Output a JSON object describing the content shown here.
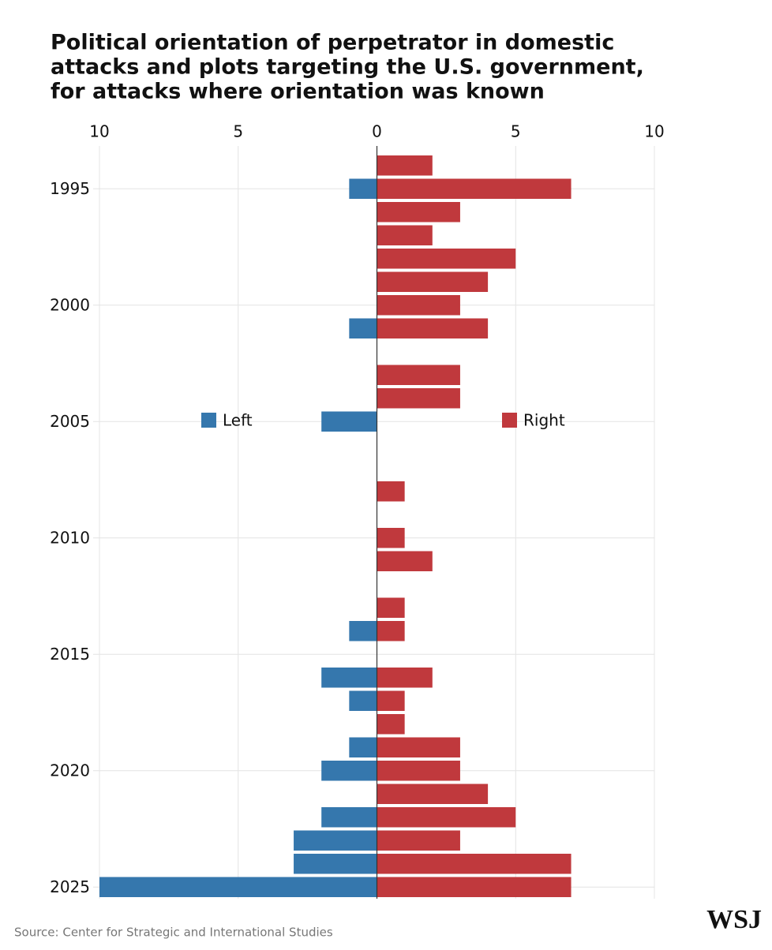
{
  "chart_data": {
    "type": "diverging-bar",
    "title_lines": [
      "Political orientation of perpetrator in domestic",
      "attacks and plots targeting the U.S. government,",
      "for attacks where orientation was known"
    ],
    "source": "Source: Center for Strategic and International Studies",
    "logo": "WSJ",
    "categories": [
      null,
      "1995",
      null,
      null,
      null,
      null,
      "2000",
      null,
      null,
      null,
      null,
      "2005",
      null,
      null,
      null,
      null,
      "2010",
      null,
      null,
      null,
      null,
      "2015",
      null,
      null,
      null,
      null,
      "2020",
      null,
      null,
      null,
      null,
      "2025"
    ],
    "series": [
      {
        "name": "Left",
        "color": "#3577ad",
        "values": [
          0,
          -1,
          0,
          0,
          0,
          0,
          0,
          -1,
          0,
          0,
          0,
          -2,
          0,
          0,
          0,
          0,
          0,
          0,
          0,
          0,
          -1,
          0,
          -2,
          -1,
          0,
          -1,
          -2,
          0,
          -2,
          -3,
          -3,
          -10
        ]
      },
      {
        "name": "Right",
        "color": "#c0393d",
        "values": [
          2,
          7,
          3,
          2,
          5,
          4,
          3,
          4,
          0,
          3,
          3,
          0,
          0,
          0,
          1,
          0,
          1,
          2,
          0,
          1,
          1,
          0,
          2,
          1,
          1,
          3,
          3,
          4,
          5,
          3,
          7,
          7
        ]
      }
    ],
    "xlim": [
      -10,
      10
    ],
    "xticks": [
      {
        "value": -10,
        "label": "10"
      },
      {
        "value": -5,
        "label": "5"
      },
      0,
      5,
      10
    ],
    "grid": true
  }
}
